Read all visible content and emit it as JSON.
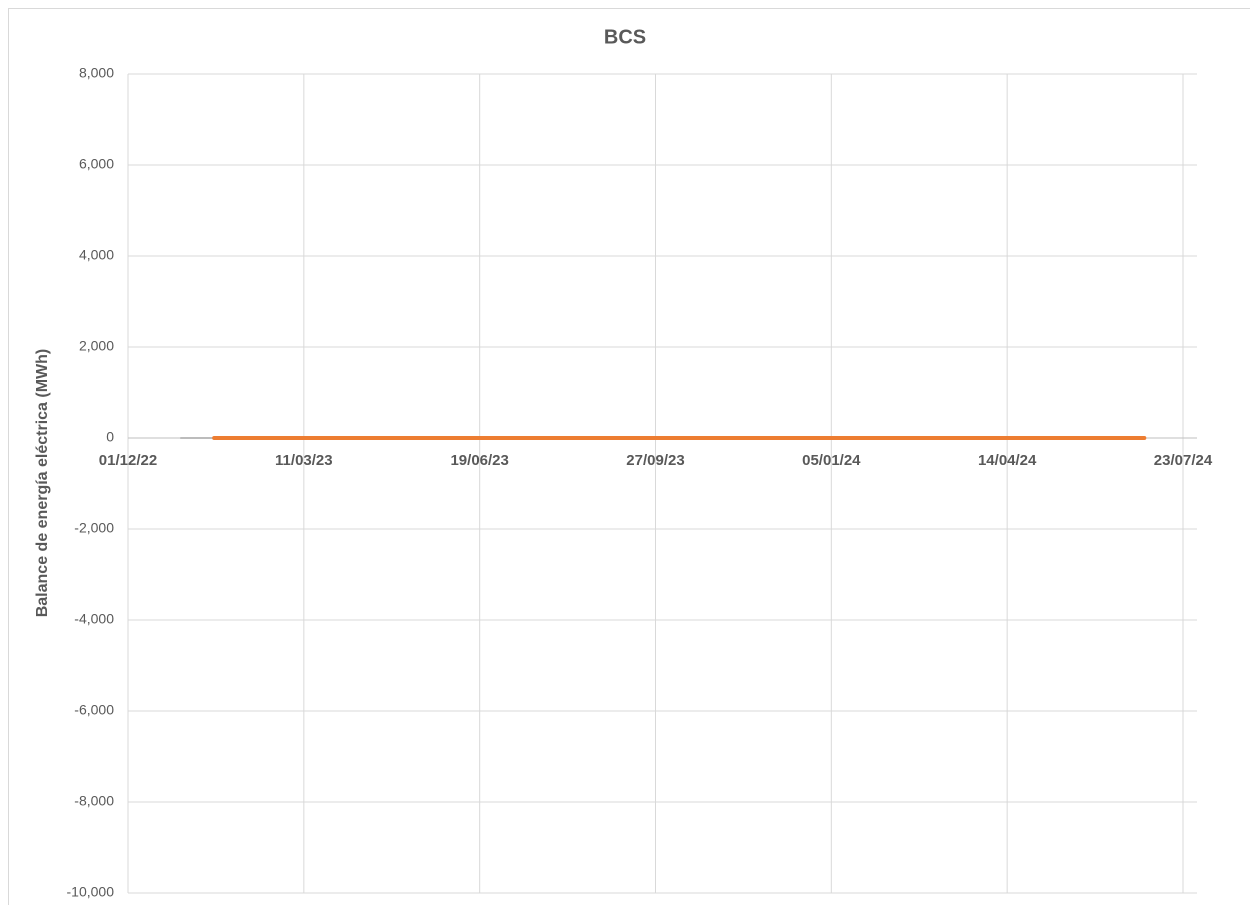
{
  "chart_data": {
    "type": "line",
    "title": "BCS",
    "y_label": "Balance de energía eléctrica (MWh)",
    "series": [
      {
        "color": "#a5a5a5",
        "x": [
          "31/12/22",
          "19/01/23"
        ],
        "values": [
          0,
          0
        ]
      },
      {
        "color": "#ed7d31",
        "x": [
          "19/01/23",
          "01/07/24"
        ],
        "values": [
          0,
          0
        ]
      }
    ],
    "xlim": [
      "01/12/22",
      "23/07/24"
    ],
    "xticks": [
      "01/12/22",
      "11/03/23",
      "19/06/23",
      "27/09/23",
      "05/01/24",
      "14/04/24",
      "23/07/24"
    ],
    "ylim": [
      -10000,
      8000
    ],
    "yticks": [
      {
        "value": -10000,
        "label": "-10,000"
      },
      {
        "value": -8000,
        "label": "-8,000"
      },
      {
        "value": -6000,
        "label": "-6,000"
      },
      {
        "value": -4000,
        "label": "-4,000"
      },
      {
        "value": -2000,
        "label": "-2,000"
      },
      0,
      {
        "value": 2000,
        "label": "2,000"
      },
      {
        "value": 4000,
        "label": "4,000"
      },
      {
        "value": 6000,
        "label": "6,000"
      },
      {
        "value": 8000,
        "label": "8,000"
      }
    ],
    "grid": true
  }
}
